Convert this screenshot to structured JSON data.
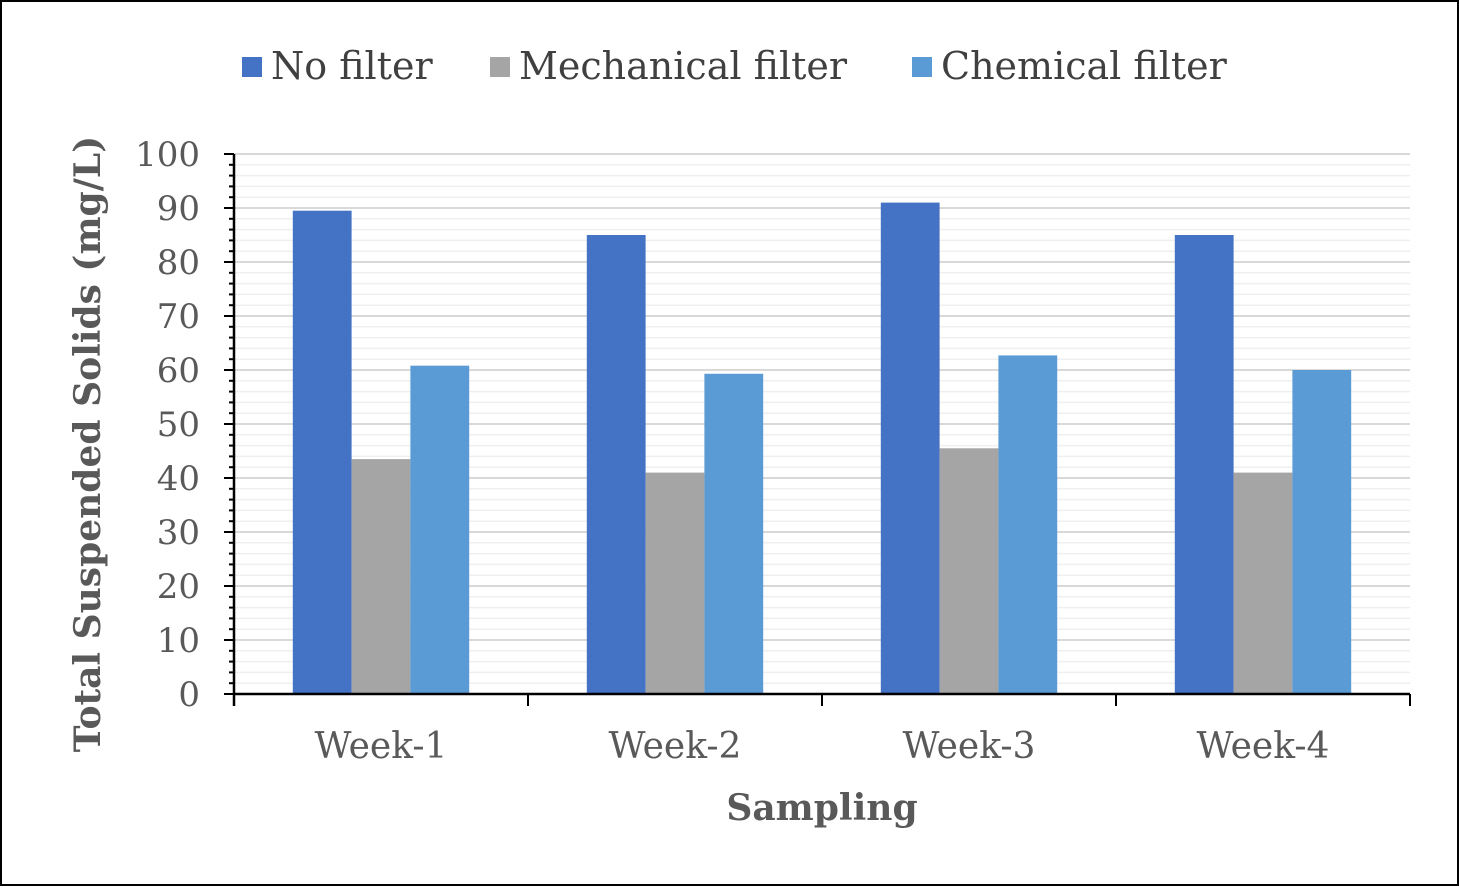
{
  "chart_data": {
    "type": "bar",
    "categories": [
      "Week-1",
      "Week-2",
      "Week-3",
      "Week-4"
    ],
    "series": [
      {
        "name": "No filter",
        "color": "#4472C4",
        "values": [
          89.5,
          85,
          91,
          85
        ]
      },
      {
        "name": "Mechanical filter",
        "color": "#A5A5A5",
        "values": [
          43.5,
          41,
          45.5,
          41
        ]
      },
      {
        "name": "Chemical filter",
        "color": "#5B9BD5",
        "values": [
          60.8,
          59.3,
          62.7,
          60
        ]
      }
    ],
    "xlabel": "Sampling",
    "ylabel": "Total Suspended Solids (mg/L)",
    "ylim": [
      0,
      100
    ],
    "yticks": [
      "0",
      "10",
      "20",
      "30",
      "40",
      "50",
      "60",
      "70",
      "80",
      "90",
      "100"
    ],
    "grid": true,
    "legend_position": "top"
  }
}
